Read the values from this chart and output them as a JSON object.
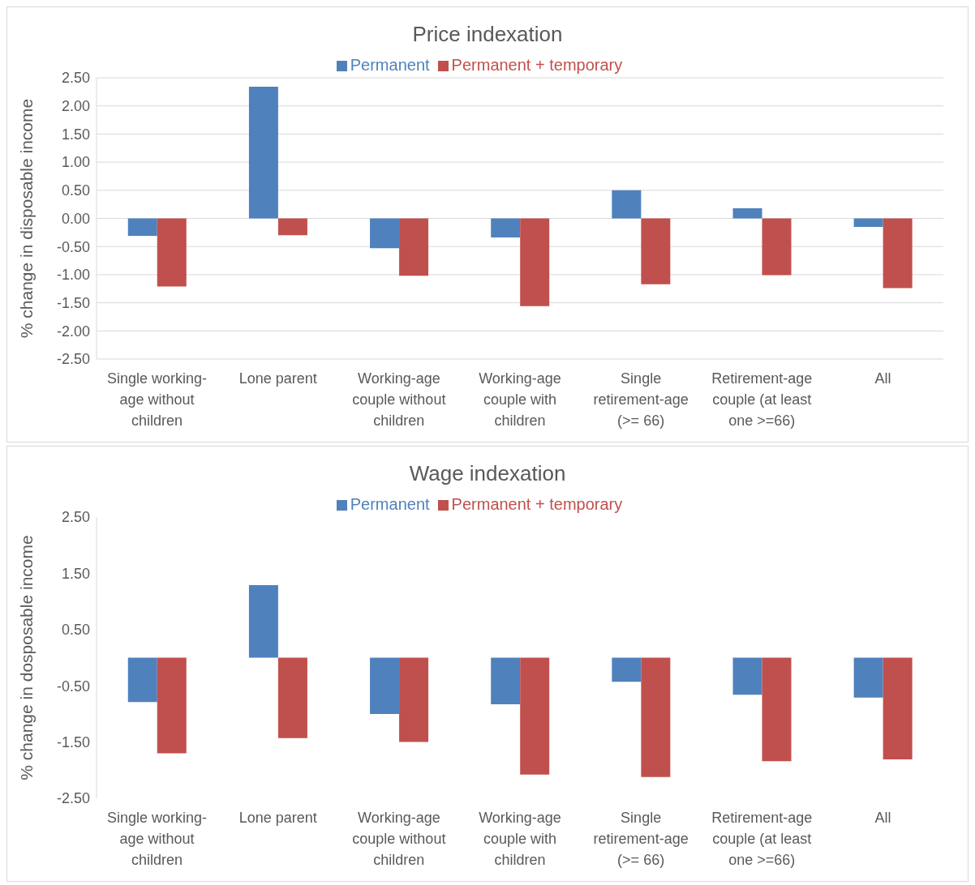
{
  "chart_data": [
    {
      "type": "bar",
      "title": "Price indexation",
      "ylabel": "% change in disposable income",
      "categories": [
        "Single working-age without children",
        "Lone parent",
        "Working-age couple without children",
        "Working-age couple with children",
        "Single retirement-age (>= 66)",
        "Retirement-age couple (at least one >=66)",
        "All"
      ],
      "series": [
        {
          "name": "Permanent",
          "color": "#4f81bd",
          "values": [
            -0.31,
            2.34,
            -0.53,
            -0.34,
            0.5,
            0.18,
            -0.15
          ]
        },
        {
          "name": "Permanent + temporary",
          "color": "#c0504d",
          "values": [
            -1.21,
            -0.3,
            -1.02,
            -1.56,
            -1.17,
            -1.01,
            -1.24
          ]
        }
      ],
      "ylim": [
        -2.5,
        2.5
      ],
      "yticks": [
        {
          "value": 2.5,
          "label": "2.50"
        },
        {
          "value": 2,
          "label": "2.00"
        },
        {
          "value": 1.5,
          "label": "1.50"
        },
        {
          "value": 1,
          "label": "1.00"
        },
        {
          "value": 0.5,
          "label": "0.50"
        },
        {
          "value": 0,
          "label": "0.00"
        },
        {
          "value": -0.5,
          "label": "-0.50"
        },
        {
          "value": -1,
          "label": "-1.00"
        },
        {
          "value": -1.5,
          "label": "-1.50"
        },
        {
          "value": -2,
          "label": "-2.00"
        },
        {
          "value": -2.5,
          "label": "-2.50"
        }
      ],
      "grid": "y",
      "legend": "top"
    },
    {
      "type": "bar",
      "title": "Wage indexation",
      "ylabel": "% change in dosposable income",
      "categories": [
        "Single working-age without children",
        "Lone parent",
        "Working-age couple without children",
        "Working-age couple with children",
        "Single retirement-age (>= 66)",
        "Retirement-age couple (at least one >=66)",
        "All"
      ],
      "series": [
        {
          "name": "Permanent",
          "color": "#4f81bd",
          "values": [
            -0.79,
            1.29,
            -1.0,
            -0.83,
            -0.43,
            -0.66,
            -0.71
          ]
        },
        {
          "name": "Permanent + temporary",
          "color": "#c0504d",
          "values": [
            -1.7,
            -1.43,
            -1.5,
            -2.08,
            -2.12,
            -1.84,
            -1.81
          ]
        }
      ],
      "ylim": [
        -2.5,
        2.5
      ],
      "yticks": [
        {
          "value": 2.5,
          "label": "2.50"
        },
        {
          "value": 1.5,
          "label": "1.50"
        },
        {
          "value": 0.5,
          "label": "0.50"
        },
        {
          "value": -0.5,
          "label": "-0.50"
        },
        {
          "value": -1.5,
          "label": "-1.50"
        },
        {
          "value": -2.5,
          "label": "-2.50"
        }
      ],
      "legend": "top"
    }
  ]
}
